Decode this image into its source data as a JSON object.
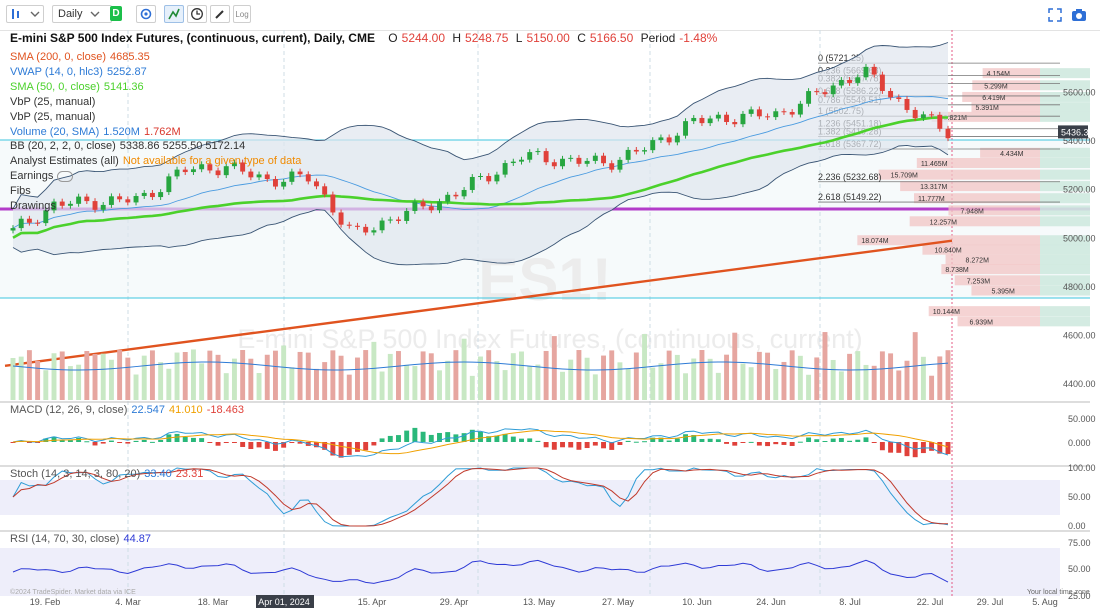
{
  "toolbar": {
    "interval": "Daily",
    "data_badge": "D",
    "log_label": "Log",
    "icons": [
      "bars-style-icon",
      "chevron-down-icon",
      "chevron-down-icon",
      "gear-icon",
      "replay-icon",
      "clock-icon",
      "fullscreen-icon",
      "camera-icon"
    ]
  },
  "header": {
    "title": "E-mini S&P 500 Index Futures, (continuous, current), Daily, CME",
    "o_label": "O",
    "o_value": "5244.00",
    "h_label": "H",
    "h_value": "5248.75",
    "l_label": "L",
    "l_value": "5150.00",
    "c_label": "C",
    "c_value": "5166.50",
    "period_label": "Period",
    "period_value": "-1.48%"
  },
  "legend": [
    {
      "name": "SMA (200, 0, close)",
      "value": "4685.35",
      "color": "#e0531f"
    },
    {
      "name": "VWAP (14, 0, hlc3)",
      "value": "5252.87",
      "color": "#2e7bd6"
    },
    {
      "name": "SMA (50, 0, close)",
      "value": "5141.36",
      "color": "#4bd12b"
    },
    {
      "name": "VbP (25, manual)",
      "value": "",
      "color": "#333"
    },
    {
      "name": "VbP (25, manual)",
      "value": "",
      "color": "#333"
    },
    {
      "name": "Volume (20, SMA)",
      "value": "1.520M",
      "value2": "1.762M",
      "color": "#2e7bd6",
      "color2": "#d9362b"
    },
    {
      "name": "BB (20, 2, 2, 0, close)",
      "value": "5338.86 5255.50 5172.14",
      "color": "#222"
    },
    {
      "name": "Analyst Estimates (all)",
      "value": "Not available for a given type of data",
      "color": "#f08a00"
    },
    {
      "name": "Earnings",
      "value": "",
      "color": "#333"
    },
    {
      "name": "Fibs",
      "value": "",
      "color": "#333"
    },
    {
      "name": "Drawings",
      "value": "",
      "color": "#333"
    }
  ],
  "watermark": {
    "symbol": "ES1!",
    "name": "E-mini S&P 500 Index Futures, (continuous, current)"
  },
  "fib_levels": [
    {
      "label": "0 (5721.25)",
      "price": 5721.25
    },
    {
      "label": "0.236 (5669.68)",
      "price": 5669.68
    },
    {
      "label": "0.382 (5637.78)",
      "price": 5637.78
    },
    {
      "label": "0.618 (5586.22)",
      "price": 5586.22
    },
    {
      "label": "0.786 (5549.51)",
      "price": 5549.51
    },
    {
      "label": "1 (5502.75)",
      "price": 5502.75
    },
    {
      "label": "1.236 (5451.18)",
      "price": 5451.18
    },
    {
      "label": "1.382 (5419.28)",
      "price": 5419.28
    },
    {
      "label": "1.618 (5367.72)",
      "price": 5367.72
    },
    {
      "label": "2.236 (5232.68)",
      "price": 5232.68
    },
    {
      "label": "2.618 (5149.22)",
      "price": 5149.22
    }
  ],
  "vbp_labels": [
    {
      "label": "4.154M",
      "price": 5680
    },
    {
      "label": "5.299M",
      "price": 5630
    },
    {
      "label": "6.419M",
      "price": 5582
    },
    {
      "label": "5.391M",
      "price": 5540
    },
    {
      "label": "9.821M",
      "price": 5500
    },
    {
      "label": "4.434M",
      "price": 5352
    },
    {
      "label": "11.465M",
      "price": 5310
    },
    {
      "label": "15.709M",
      "price": 5262
    },
    {
      "label": "13.317M",
      "price": 5215
    },
    {
      "label": "11.777M",
      "price": 5165
    },
    {
      "label": "7.948M",
      "price": 5115
    },
    {
      "label": "12.257M",
      "price": 5070
    },
    {
      "label": "18.074M",
      "price": 4992
    },
    {
      "label": "10.840M",
      "price": 4953
    },
    {
      "label": "8.272M",
      "price": 4912
    },
    {
      "label": "8.738M",
      "price": 4873
    },
    {
      "label": "7.253M",
      "price": 4827
    },
    {
      "label": "5.395M",
      "price": 4785
    },
    {
      "label": "10.144M",
      "price": 4700
    },
    {
      "label": "6.939M",
      "price": 4658
    }
  ],
  "price_axis": {
    "ticks": [
      "5600.00",
      "5400.00",
      "5200.00",
      "5000.00",
      "4800.00",
      "4600.00",
      "4400.00"
    ],
    "last_price": "5436.38"
  },
  "x_axis": {
    "ticks": [
      "19. Feb",
      "4. Mar",
      "18. Mar",
      "Apr 01, 2024",
      "15. Apr",
      "29. Apr",
      "13. May",
      "27. May",
      "10. Jun",
      "24. Jun",
      "8. Jul",
      "22. Jul",
      "29. Jul",
      "5. Aug"
    ]
  },
  "macd": {
    "name": "MACD (12, 26, 9, close)",
    "v1": "22.547",
    "v2": "41.010",
    "v3": "-18.463",
    "ticks": [
      "50.000",
      "0.000"
    ]
  },
  "stoch": {
    "name": "Stoch (14, 3, 14, 3, 80, 20)",
    "v1": "33.40",
    "v2": "23.31",
    "ticks": [
      "100.00",
      "50.00",
      "0.00"
    ]
  },
  "rsi": {
    "name": "RSI (14, 70, 30, close)",
    "value": "44.87",
    "ticks": [
      "75.00",
      "50.00",
      "25.00"
    ]
  },
  "footer": {
    "attribution": "©2024 TradeSpider. Market data via ICE",
    "timezone": "Your local time zone"
  },
  "colors": {
    "up": "#27a640",
    "down": "#e0413a",
    "sma200": "#e0531f",
    "sma50": "#4bd12b",
    "bb": "#3a5574",
    "vwap": "#4a9be0",
    "purple": "#b33cc9",
    "cyan": "#3ec6df"
  },
  "chart_data": {
    "type": "candlestick",
    "x": [
      "2024-02-19",
      "2024-02-26",
      "2024-03-04",
      "2024-03-11",
      "2024-03-18",
      "2024-03-25",
      "2024-04-01",
      "2024-04-08",
      "2024-04-15",
      "2024-04-22",
      "2024-04-29",
      "2024-05-06",
      "2024-05-13",
      "2024-05-20",
      "2024-05-27",
      "2024-06-03",
      "2024-06-10",
      "2024-06-17",
      "2024-06-24",
      "2024-07-01",
      "2024-07-08",
      "2024-07-15",
      "2024-07-22"
    ],
    "close": [
      5030,
      5140,
      5150,
      5160,
      5280,
      5295,
      5240,
      5250,
      5010,
      5090,
      5150,
      5240,
      5340,
      5320,
      5310,
      5380,
      5480,
      5500,
      5510,
      5600,
      5690,
      5540,
      5436
    ],
    "sma200_close": 4685.35,
    "sma50_close": 5141.36,
    "volume_sma": [
      "1.520M",
      "1.762M"
    ],
    "ylim": [
      4400,
      5800
    ]
  }
}
